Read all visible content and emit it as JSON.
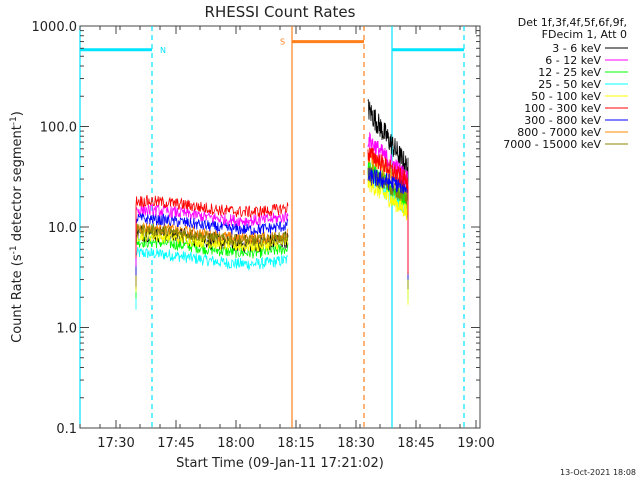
{
  "chart_data": {
    "type": "line",
    "title": "RHESSI Count Rates",
    "xlabel": "Start Time (09-Jan-11 17:21:02)",
    "ylabel_main": "Count Rate (s",
    "ylabel_sup": "-1",
    "ylabel_rest": " detector segment",
    "ylabel_end": ")",
    "y_scale": "log",
    "ylim": [
      0.1,
      1000
    ],
    "xlim": [
      "17:21",
      "19:01"
    ],
    "x_ticks": [
      {
        "t": "17:30",
        "label": "17:30"
      },
      {
        "t": "17:45",
        "label": "17:45"
      },
      {
        "t": "18:00",
        "label": "18:00"
      },
      {
        "t": "18:15",
        "label": "18:15"
      },
      {
        "t": "18:30",
        "label": "18:30"
      },
      {
        "t": "18:45",
        "label": "18:45"
      },
      {
        "t": "19:00",
        "label": "19:00"
      }
    ],
    "y_ticks": [
      {
        "v": 0.1,
        "label": "0.1"
      },
      {
        "v": 1,
        "label": "1.0"
      },
      {
        "v": 10,
        "label": "10.0"
      },
      {
        "v": 100,
        "label": "100.0"
      },
      {
        "v": 1000,
        "label": "1000.0"
      }
    ],
    "legend_header": [
      "Det 1f,3f,4f,5f,6f,9f,",
      "FDecim 1, Att 0"
    ],
    "series": [
      {
        "name": "3 - 6 keV",
        "color": "#000000",
        "orbit1_level": 8.0,
        "orbit2_start": 150,
        "orbit2_end": 38
      },
      {
        "name": "6 - 12 keV",
        "color": "#ff00ff",
        "orbit1_level": 13.5,
        "orbit2_start": 75,
        "orbit2_end": 30
      },
      {
        "name": "12 - 25 keV",
        "color": "#00ff00",
        "orbit1_level": 6.5,
        "orbit2_start": 40,
        "orbit2_end": 18
      },
      {
        "name": "25 - 50 keV",
        "color": "#00ffff",
        "orbit1_level": 5.0,
        "orbit2_start": 32,
        "orbit2_end": 15
      },
      {
        "name": "50 - 100 keV",
        "color": "#ffff00",
        "orbit1_level": 7.5,
        "orbit2_start": 28,
        "orbit2_end": 14
      },
      {
        "name": "100 - 300 keV",
        "color": "#ff0000",
        "orbit1_level": 16.5,
        "orbit2_start": 55,
        "orbit2_end": 28
      },
      {
        "name": "300 - 800 keV",
        "color": "#0000ff",
        "orbit1_level": 11.0,
        "orbit2_start": 32,
        "orbit2_end": 25
      },
      {
        "name": "800 - 7000 keV",
        "color": "#ff8800",
        "orbit1_level": 9.0,
        "orbit2_start": 50,
        "orbit2_end": 24
      },
      {
        "name": "7000 - 15000 keV",
        "color": "#888800",
        "orbit1_level": 8.5,
        "orbit2_start": 34,
        "orbit2_end": 20
      }
    ],
    "data_intervals": [
      {
        "start": "17:35",
        "end": "18:13"
      },
      {
        "start": "18:33",
        "end": "18:43"
      }
    ],
    "night_markers": [
      {
        "kind": "solid",
        "t": "17:21"
      },
      {
        "kind": "dashed",
        "t": "17:39"
      },
      {
        "kind": "solid",
        "t": "18:39"
      },
      {
        "kind": "dashed",
        "t": "18:57"
      }
    ],
    "night_bars": [
      {
        "start": "17:21",
        "end": "17:39",
        "level": 580,
        "label": "N"
      },
      {
        "start": "18:39",
        "end": "18:57",
        "level": 580,
        "label": ""
      }
    ],
    "saa_markers": [
      {
        "kind": "solid",
        "t": "18:14"
      },
      {
        "kind": "dashed",
        "t": "18:32"
      }
    ],
    "saa_bar": {
      "start": "18:14",
      "end": "18:32",
      "level": 700,
      "label": "S"
    },
    "night_color": "#00e5ff",
    "saa_color": "#ff7f1a",
    "timestamp": "13-Oct-2021 18:08"
  }
}
